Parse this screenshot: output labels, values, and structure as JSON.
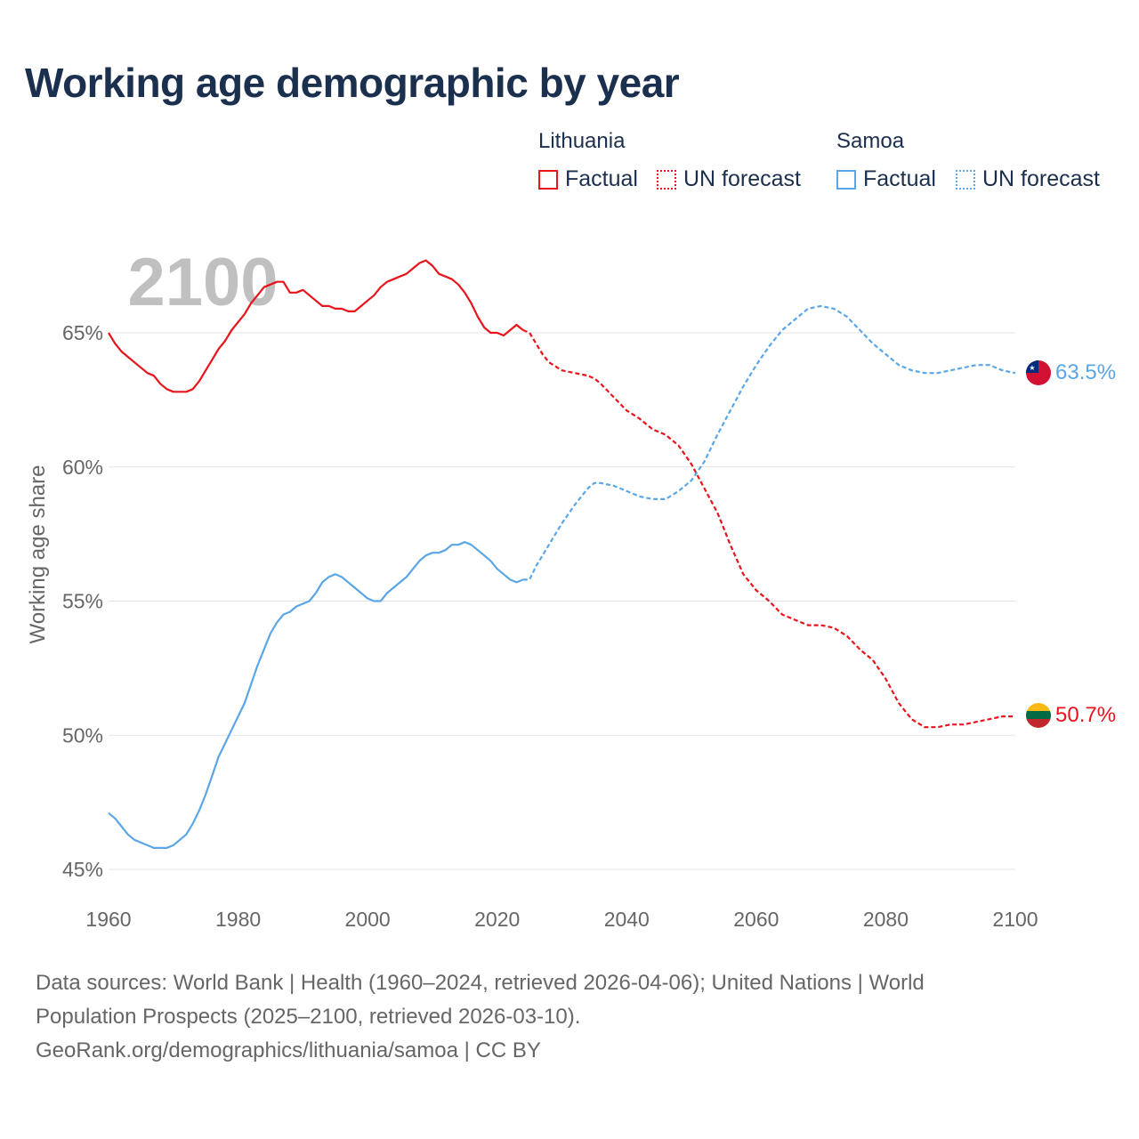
{
  "title": "Working age demographic by year",
  "legend": {
    "groups": [
      {
        "country": "Lithuania",
        "color": "#e8141c",
        "factual_label": "Factual",
        "forecast_label": "UN forecast"
      },
      {
        "country": "Samoa",
        "color": "#5aa6e6",
        "factual_label": "Factual",
        "forecast_label": "UN forecast"
      }
    ]
  },
  "year_watermark": "2100",
  "footer": {
    "line1": "Data sources: World Bank | Health (1960–2024, retrieved 2026-04-06); United Nations | World",
    "line2": "Population Prospects (2025–2100, retrieved 2026-03-10).",
    "line3": "GeoRank.org/demographics/lithuania/samoa | CC BY"
  },
  "chart_data": {
    "type": "line",
    "title": "Working age demographic by year",
    "xlabel": "",
    "ylabel": "Working age share",
    "xlim": [
      1960,
      2100
    ],
    "ylim": [
      45,
      67.5
    ],
    "x_ticks": [
      1960,
      1980,
      2000,
      2020,
      2040,
      2060,
      2080,
      2100
    ],
    "x_tick_labels": [
      "1960",
      "1980",
      "2000",
      "2020",
      "2040",
      "2060",
      "2080",
      "2100"
    ],
    "y_ticks": [
      45,
      50,
      55,
      60,
      65
    ],
    "y_tick_labels": [
      "45%",
      "50%",
      "55%",
      "60%",
      "65%"
    ],
    "grid": true,
    "series": [
      {
        "name": "Lithuania",
        "color": "#e8141c",
        "end_label": "50.7%",
        "factual": {
          "x": [
            1960,
            1961,
            1962,
            1964,
            1966,
            1967,
            1968,
            1969,
            1970,
            1972,
            1973,
            1974,
            1976,
            1977,
            1978,
            1979,
            1980,
            1981,
            1982,
            1983,
            1984,
            1985,
            1986,
            1987,
            1988,
            1989,
            1990,
            1992,
            1993,
            1994,
            1995,
            1996,
            1997,
            1998,
            1999,
            2000,
            2001,
            2002,
            2003,
            2004,
            2005,
            2006,
            2007,
            2008,
            2009,
            2010,
            2011,
            2012,
            2013,
            2014,
            2015,
            2016,
            2017,
            2018,
            2019,
            2020,
            2021,
            2022,
            2023,
            2024
          ],
          "y": [
            65.0,
            64.6,
            64.3,
            63.9,
            63.5,
            63.4,
            63.1,
            62.9,
            62.8,
            62.8,
            62.9,
            63.2,
            64.0,
            64.4,
            64.7,
            65.1,
            65.4,
            65.7,
            66.1,
            66.4,
            66.7,
            66.8,
            66.9,
            66.9,
            66.5,
            66.5,
            66.6,
            66.2,
            66.0,
            66.0,
            65.9,
            65.9,
            65.8,
            65.8,
            66.0,
            66.2,
            66.4,
            66.7,
            66.9,
            67.0,
            67.1,
            67.2,
            67.4,
            67.6,
            67.7,
            67.5,
            67.2,
            67.1,
            67.0,
            66.8,
            66.5,
            66.1,
            65.6,
            65.2,
            65.0,
            65.0,
            64.9,
            65.1,
            65.3,
            65.1
          ],
          "forecast_x": [
            2024,
            2025,
            2026,
            2027,
            2028,
            2030,
            2032,
            2034,
            2035,
            2036,
            2038,
            2040,
            2042,
            2044,
            2046,
            2048,
            2050,
            2052,
            2054,
            2056,
            2058,
            2060,
            2062,
            2064,
            2066,
            2068,
            2070,
            2072,
            2074,
            2076,
            2078,
            2080,
            2082,
            2084,
            2086,
            2088,
            2090,
            2092,
            2094,
            2096,
            2098,
            2100
          ],
          "forecast_y": [
            65.1,
            65.0,
            64.6,
            64.2,
            63.9,
            63.6,
            63.5,
            63.4,
            63.3,
            63.1,
            62.6,
            62.1,
            61.8,
            61.4,
            61.2,
            60.8,
            60.1,
            59.2,
            58.3,
            57.1,
            56.0,
            55.4,
            55.0,
            54.5,
            54.3,
            54.1,
            54.1,
            54.0,
            53.7,
            53.2,
            52.8,
            52.1,
            51.2,
            50.6,
            50.3,
            50.3,
            50.4,
            50.4,
            50.5,
            50.6,
            50.7,
            50.7
          ]
        }
      },
      {
        "name": "Samoa",
        "color": "#5aa6e6",
        "end_label": "63.5%",
        "factual": {
          "x": [
            1960,
            1961,
            1962,
            1963,
            1964,
            1965,
            1966,
            1967,
            1968,
            1969,
            1970,
            1971,
            1972,
            1973,
            1974,
            1975,
            1976,
            1977,
            1978,
            1979,
            1980,
            1981,
            1982,
            1983,
            1984,
            1985,
            1986,
            1987,
            1988,
            1989,
            1990,
            1991,
            1992,
            1993,
            1994,
            1995,
            1996,
            1997,
            1998,
            1999,
            2000,
            2001,
            2002,
            2003,
            2004,
            2005,
            2006,
            2007,
            2008,
            2009,
            2010,
            2011,
            2012,
            2013,
            2014,
            2015,
            2016,
            2017,
            2018,
            2019,
            2020,
            2021,
            2022,
            2023,
            2024
          ],
          "y": [
            47.1,
            46.9,
            46.6,
            46.3,
            46.1,
            46.0,
            45.9,
            45.8,
            45.8,
            45.8,
            45.9,
            46.1,
            46.3,
            46.7,
            47.2,
            47.8,
            48.5,
            49.2,
            49.7,
            50.2,
            50.7,
            51.2,
            51.9,
            52.6,
            53.2,
            53.8,
            54.2,
            54.5,
            54.6,
            54.8,
            54.9,
            55.0,
            55.3,
            55.7,
            55.9,
            56.0,
            55.9,
            55.7,
            55.5,
            55.3,
            55.1,
            55.0,
            55.0,
            55.3,
            55.5,
            55.7,
            55.9,
            56.2,
            56.5,
            56.7,
            56.8,
            56.8,
            56.9,
            57.1,
            57.1,
            57.2,
            57.1,
            56.9,
            56.7,
            56.5,
            56.2,
            56.0,
            55.8,
            55.7,
            55.8
          ],
          "forecast_x": [
            2024,
            2025,
            2026,
            2028,
            2030,
            2032,
            2034,
            2035,
            2036,
            2038,
            2040,
            2042,
            2044,
            2046,
            2048,
            2050,
            2052,
            2054,
            2056,
            2058,
            2060,
            2062,
            2064,
            2066,
            2068,
            2070,
            2072,
            2074,
            2076,
            2078,
            2080,
            2082,
            2084,
            2086,
            2088,
            2090,
            2092,
            2094,
            2096,
            2098,
            2100
          ],
          "forecast_y": [
            55.8,
            55.8,
            56.3,
            57.1,
            57.9,
            58.6,
            59.2,
            59.4,
            59.4,
            59.3,
            59.1,
            58.9,
            58.8,
            58.8,
            59.1,
            59.5,
            60.2,
            61.2,
            62.1,
            63.0,
            63.8,
            64.5,
            65.1,
            65.5,
            65.9,
            66.0,
            65.9,
            65.6,
            65.1,
            64.6,
            64.2,
            63.8,
            63.6,
            63.5,
            63.5,
            63.6,
            63.7,
            63.8,
            63.8,
            63.6,
            63.5
          ]
        }
      }
    ]
  }
}
